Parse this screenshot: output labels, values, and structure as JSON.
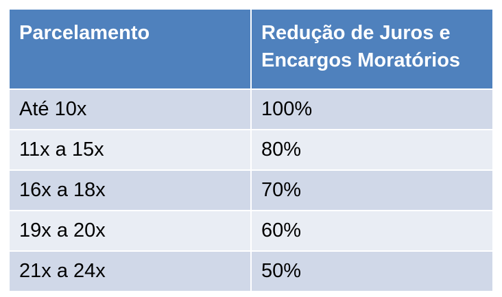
{
  "table": {
    "header": [
      "Parcelamento",
      "Redução de Juros e Encargos Moratórios"
    ],
    "rows": [
      [
        "Até 10x",
        "100%"
      ],
      [
        "11x a 15x",
        "80%"
      ],
      [
        "16x a 18x",
        "70%"
      ],
      [
        "19x a 20x",
        "60%"
      ],
      [
        "21x a 24x",
        "50%"
      ]
    ]
  }
}
